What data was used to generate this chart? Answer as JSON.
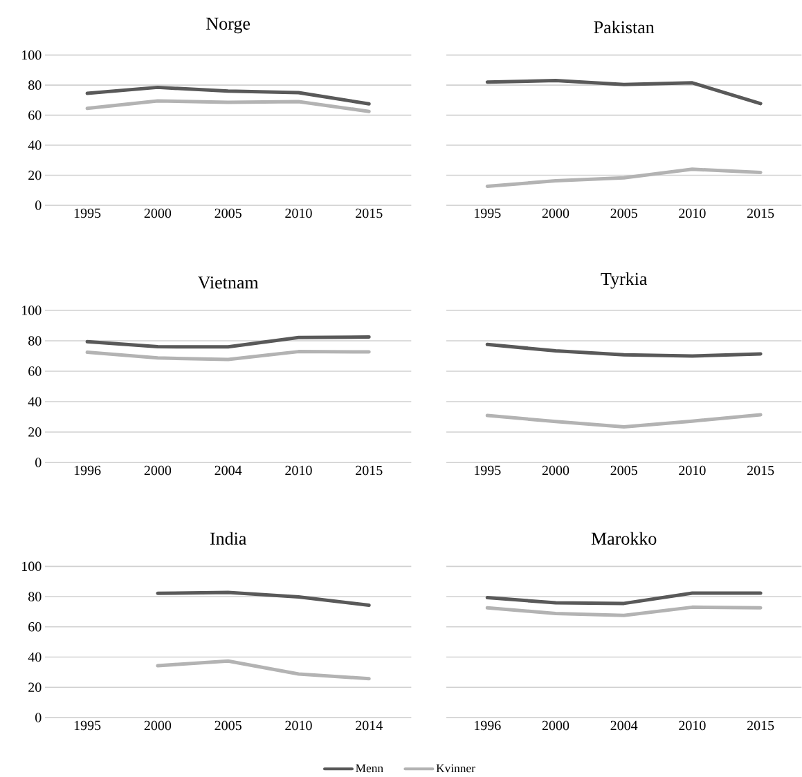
{
  "chart_data": [
    {
      "type": "line",
      "title": "Norge",
      "categories": [
        "1995",
        "2000",
        "2005",
        "2010",
        "2015"
      ],
      "ylim": [
        0,
        100
      ],
      "yticks": [
        0,
        20,
        40,
        60,
        80,
        100
      ],
      "grid": "y",
      "legend": false,
      "marker": "none",
      "line_style": "solid",
      "series": [
        {
          "color": "#595959",
          "values": [
            74.5,
            78.5,
            76,
            75,
            67.5
          ]
        },
        {
          "color": "#b3b3b3",
          "values": [
            64.5,
            69.5,
            68.5,
            69,
            62.5
          ]
        }
      ]
    },
    {
      "type": "line",
      "title": "Pakistan",
      "categories": [
        "1995",
        "2000",
        "2005",
        "2010",
        "2015"
      ],
      "ylim": [
        0,
        100
      ],
      "yticks": [
        0,
        20,
        40,
        60,
        80,
        100
      ],
      "grid": "y",
      "legend": false,
      "marker": "none",
      "line_style": "solid",
      "tick_labels": "x",
      "series": [
        {
          "color": "#595959",
          "values": [
            82,
            83,
            80.4,
            81.5,
            67.7
          ]
        },
        {
          "color": "#b3b3b3",
          "values": [
            12.7,
            16.3,
            18.3,
            24,
            21.9
          ]
        }
      ]
    },
    {
      "type": "line",
      "title": "Vietnam",
      "categories": [
        "1996",
        "2000",
        "2004",
        "2010",
        "2015"
      ],
      "ylim": [
        0,
        100
      ],
      "yticks": [
        0,
        20,
        40,
        60,
        80,
        100
      ],
      "grid": "y",
      "legend": false,
      "marker": "none",
      "line_style": "solid",
      "series": [
        {
          "color": "#595959",
          "values": [
            79.4,
            76.1,
            76,
            82.2,
            82.5
          ]
        },
        {
          "color": "#b3b3b3",
          "values": [
            72.5,
            68.7,
            67.7,
            72.9,
            72.7
          ]
        }
      ]
    },
    {
      "type": "line",
      "title": "Tyrkia",
      "categories": [
        "1995",
        "2000",
        "2005",
        "2010",
        "2015"
      ],
      "ylim": [
        0,
        100
      ],
      "yticks": [
        0,
        20,
        40,
        60,
        80,
        100
      ],
      "grid": "y",
      "legend": false,
      "marker": "none",
      "line_style": "solid",
      "tick_labels": "x",
      "series": [
        {
          "color": "#595959",
          "values": [
            77.6,
            73.4,
            70.8,
            70,
            71.4
          ]
        },
        {
          "color": "#b3b3b3",
          "values": [
            30.9,
            26.9,
            23.4,
            27.2,
            31.4
          ]
        }
      ]
    },
    {
      "type": "line",
      "title": "India",
      "categories": [
        "1995",
        "2000",
        "2005",
        "2010",
        "2014"
      ],
      "ylim": [
        0,
        100
      ],
      "yticks": [
        0,
        20,
        40,
        60,
        80,
        100
      ],
      "grid": "y",
      "legend": false,
      "marker": "none",
      "line_style": "solid",
      "series": [
        {
          "color": "#595959",
          "values": [
            null,
            82.2,
            82.8,
            79.8,
            74.3
          ]
        },
        {
          "color": "#b3b3b3",
          "values": [
            null,
            34.3,
            37.4,
            28.8,
            25.7
          ]
        }
      ]
    },
    {
      "type": "line",
      "title": "Marokko",
      "categories": [
        "1996",
        "2000",
        "2004",
        "2010",
        "2015"
      ],
      "ylim": [
        0,
        100
      ],
      "yticks": [
        0,
        20,
        40,
        60,
        80,
        100
      ],
      "grid": "y",
      "legend": "bottom",
      "marker": "none",
      "line_style": "solid",
      "tick_labels": "x",
      "series": [
        {
          "name": "Menn",
          "color": "#595959",
          "values": [
            79.3,
            75.9,
            75.5,
            82.3,
            82.3
          ]
        },
        {
          "name": "Kvinner",
          "color": "#b3b3b3",
          "values": [
            72.6,
            68.8,
            67.6,
            73,
            72.6
          ]
        }
      ]
    }
  ]
}
